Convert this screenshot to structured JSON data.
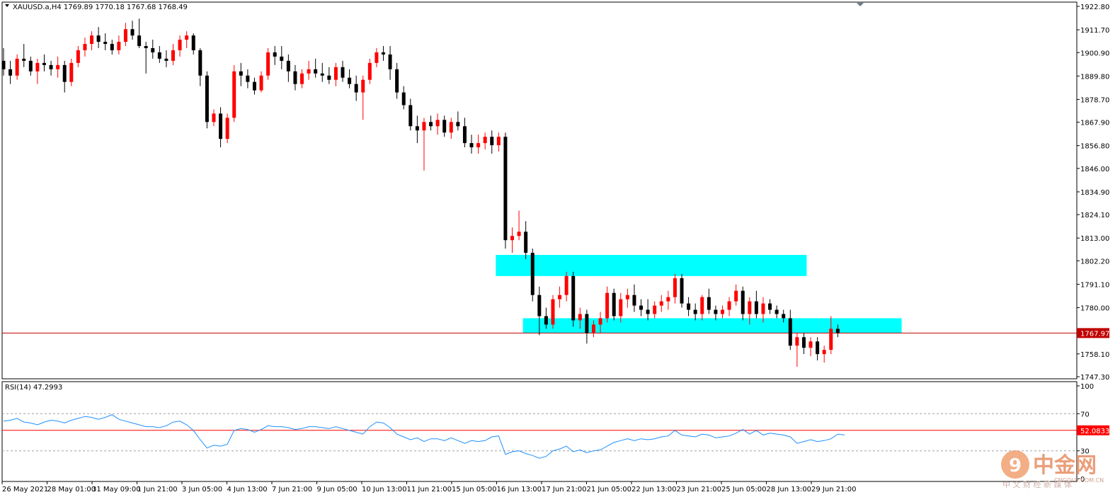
{
  "header": {
    "symbol_line": "XAUUSD.a,H4  1769.89 1770.18 1767.68 1768.49"
  },
  "price_axis": {
    "ticks": [
      "1922.80",
      "1911.70",
      "1900.90",
      "1889.80",
      "1878.70",
      "1867.90",
      "1856.80",
      "1846.00",
      "1834.90",
      "1824.10",
      "1813.00",
      "1802.20",
      "1791.10",
      "1780.00",
      "1769.20",
      "1758.10",
      "1747.30"
    ],
    "current_price": "1767.97"
  },
  "rsi": {
    "label": "RSI(14) 47.2993",
    "ticks": [
      "100",
      "70",
      "30",
      "0"
    ],
    "level_value": "52.0833"
  },
  "time_axis": {
    "labels": [
      "26 May 2021",
      "28 May 01:00",
      "31 May 09:00",
      "1 Jun 21:00",
      "3 Jun 05:00",
      "4 Jun 13:00",
      "7 Jun 21:00",
      "9 Jun 05:00",
      "10 Jun 13:00",
      "11 Jun 21:00",
      "15 Jun 05:00",
      "16 Jun 13:00",
      "17 Jun 21:00",
      "21 Jun 05:00",
      "22 Jun 13:00",
      "23 Jun 21:00",
      "25 Jun 05:00",
      "28 Jun 13:00",
      "29 Jun 21:00"
    ]
  },
  "watermark": {
    "brand": "中金网",
    "url": "CNGOLD.COM.CN",
    "tagline": "中 文 财 经 新 媒 体"
  },
  "colors": {
    "bull": "#ff0000",
    "bear": "#000000",
    "zone": "#00ffff",
    "rsi_line": "#1e90ff",
    "price_line": "#c00000",
    "level_line": "#ff0000"
  },
  "chart_data": [
    {
      "type": "candlestick",
      "title": "XAUUSD.a,H4",
      "ylim": [
        1747.3,
        1922.8
      ],
      "candles_ohlc": [
        [
          1897,
          1903,
          1890,
          1893
        ],
        [
          1893,
          1897,
          1886,
          1890
        ],
        [
          1890,
          1900,
          1888,
          1898
        ],
        [
          1898,
          1905,
          1894,
          1897
        ],
        [
          1897,
          1899,
          1890,
          1892
        ],
        [
          1892,
          1898,
          1886,
          1896
        ],
        [
          1896,
          1900,
          1892,
          1895
        ],
        [
          1895,
          1897,
          1890,
          1893
        ],
        [
          1893,
          1899,
          1889,
          1895
        ],
        [
          1895,
          1897,
          1882,
          1887
        ],
        [
          1887,
          1898,
          1885,
          1896
        ],
        [
          1896,
          1904,
          1894,
          1902
        ],
        [
          1902,
          1908,
          1899,
          1905
        ],
        [
          1905,
          1911,
          1902,
          1909
        ],
        [
          1909,
          1913,
          1903,
          1906
        ],
        [
          1906,
          1910,
          1902,
          1905
        ],
        [
          1905,
          1907,
          1900,
          1902
        ],
        [
          1902,
          1909,
          1900,
          1906
        ],
        [
          1906,
          1915,
          1904,
          1912
        ],
        [
          1912,
          1916,
          1907,
          1909
        ],
        [
          1909,
          1917,
          1903,
          1904
        ],
        [
          1904,
          1906,
          1891,
          1903
        ],
        [
          1903,
          1907,
          1898,
          1901
        ],
        [
          1901,
          1904,
          1896,
          1898
        ],
        [
          1898,
          1902,
          1894,
          1897
        ],
        [
          1897,
          1905,
          1895,
          1902
        ],
        [
          1902,
          1909,
          1899,
          1907
        ],
        [
          1907,
          1911,
          1903,
          1909
        ],
        [
          1909,
          1910,
          1900,
          1902
        ],
        [
          1902,
          1903,
          1885,
          1890
        ],
        [
          1890,
          1892,
          1865,
          1868
        ],
        [
          1868,
          1874,
          1866,
          1872
        ],
        [
          1872,
          1875,
          1856,
          1860
        ],
        [
          1860,
          1872,
          1858,
          1870
        ],
        [
          1870,
          1895,
          1868,
          1892
        ],
        [
          1892,
          1896,
          1885,
          1890
        ],
        [
          1890,
          1893,
          1884,
          1887
        ],
        [
          1887,
          1889,
          1881,
          1883
        ],
        [
          1883,
          1892,
          1882,
          1890
        ],
        [
          1890,
          1903,
          1888,
          1901
        ],
        [
          1901,
          1904,
          1895,
          1899
        ],
        [
          1899,
          1904,
          1893,
          1897
        ],
        [
          1897,
          1900,
          1887,
          1892
        ],
        [
          1892,
          1895,
          1883,
          1886
        ],
        [
          1886,
          1893,
          1884,
          1891
        ],
        [
          1891,
          1897,
          1888,
          1893
        ],
        [
          1893,
          1898,
          1889,
          1891
        ],
        [
          1891,
          1896,
          1887,
          1890
        ],
        [
          1890,
          1894,
          1886,
          1888
        ],
        [
          1888,
          1896,
          1885,
          1894
        ],
        [
          1894,
          1897,
          1887,
          1889
        ],
        [
          1889,
          1893,
          1884,
          1886
        ],
        [
          1886,
          1890,
          1878,
          1882
        ],
        [
          1882,
          1890,
          1869,
          1888
        ],
        [
          1888,
          1898,
          1886,
          1896
        ],
        [
          1896,
          1903,
          1894,
          1901
        ],
        [
          1901,
          1904,
          1897,
          1900
        ],
        [
          1900,
          1904,
          1888,
          1893
        ],
        [
          1893,
          1896,
          1879,
          1882
        ],
        [
          1882,
          1885,
          1874,
          1876
        ],
        [
          1876,
          1879,
          1864,
          1866
        ],
        [
          1866,
          1871,
          1858,
          1864
        ],
        [
          1864,
          1870,
          1845,
          1868
        ],
        [
          1868,
          1871,
          1864,
          1866
        ],
        [
          1866,
          1872,
          1862,
          1869
        ],
        [
          1869,
          1871,
          1861,
          1863
        ],
        [
          1863,
          1870,
          1860,
          1868
        ],
        [
          1868,
          1873,
          1864,
          1866
        ],
        [
          1866,
          1870,
          1856,
          1858
        ],
        [
          1858,
          1862,
          1853,
          1856
        ],
        [
          1856,
          1862,
          1853,
          1858
        ],
        [
          1858,
          1863,
          1855,
          1861
        ],
        [
          1861,
          1864,
          1853,
          1857
        ],
        [
          1857,
          1863,
          1854,
          1861
        ],
        [
          1861,
          1863,
          1808,
          1812
        ],
        [
          1812,
          1818,
          1806,
          1814
        ],
        [
          1814,
          1826,
          1812,
          1816
        ],
        [
          1816,
          1821,
          1803,
          1806
        ],
        [
          1806,
          1808,
          1783,
          1786
        ],
        [
          1786,
          1790,
          1767,
          1776
        ],
        [
          1776,
          1780,
          1770,
          1772
        ],
        [
          1772,
          1786,
          1770,
          1784
        ],
        [
          1784,
          1790,
          1780,
          1786
        ],
        [
          1786,
          1797,
          1783,
          1795
        ],
        [
          1795,
          1797,
          1771,
          1774
        ],
        [
          1774,
          1780,
          1770,
          1777
        ],
        [
          1777,
          1779,
          1763,
          1768
        ],
        [
          1768,
          1774,
          1766,
          1772
        ],
        [
          1772,
          1778,
          1768,
          1775
        ],
        [
          1775,
          1790,
          1773,
          1787
        ],
        [
          1787,
          1789,
          1774,
          1776
        ],
        [
          1776,
          1787,
          1773,
          1784
        ],
        [
          1784,
          1789,
          1780,
          1786
        ],
        [
          1786,
          1791,
          1778,
          1781
        ],
        [
          1781,
          1784,
          1776,
          1779
        ],
        [
          1779,
          1784,
          1774,
          1777
        ],
        [
          1777,
          1783,
          1775,
          1781
        ],
        [
          1781,
          1786,
          1778,
          1783
        ],
        [
          1783,
          1788,
          1779,
          1785
        ],
        [
          1785,
          1796,
          1782,
          1794
        ],
        [
          1794,
          1796,
          1780,
          1782
        ],
        [
          1782,
          1785,
          1776,
          1779
        ],
        [
          1779,
          1782,
          1774,
          1777
        ],
        [
          1777,
          1786,
          1774,
          1785
        ],
        [
          1785,
          1789,
          1777,
          1779
        ],
        [
          1779,
          1781,
          1774,
          1777
        ],
        [
          1777,
          1781,
          1775,
          1779
        ],
        [
          1779,
          1785,
          1776,
          1783
        ],
        [
          1783,
          1791,
          1781,
          1788
        ],
        [
          1788,
          1790,
          1774,
          1777
        ],
        [
          1777,
          1785,
          1772,
          1783
        ],
        [
          1783,
          1788,
          1775,
          1777
        ],
        [
          1777,
          1785,
          1773,
          1782
        ],
        [
          1782,
          1784,
          1777,
          1779
        ],
        [
          1779,
          1781,
          1775,
          1777
        ],
        [
          1777,
          1779,
          1773,
          1775
        ],
        [
          1775,
          1779,
          1760,
          1762
        ],
        [
          1762,
          1768,
          1752,
          1766
        ],
        [
          1766,
          1768,
          1758,
          1761
        ],
        [
          1761,
          1766,
          1757,
          1764
        ],
        [
          1764,
          1766,
          1755,
          1758
        ],
        [
          1758,
          1762,
          1754,
          1760
        ],
        [
          1760,
          1776,
          1758,
          1770
        ],
        [
          1770,
          1772,
          1766,
          1768
        ]
      ]
    },
    {
      "type": "line",
      "title": "RSI(14) 47.2993",
      "ylim": [
        0,
        100
      ],
      "series": [
        {
          "name": "RSI(14)",
          "values": [
            62,
            63,
            65,
            61,
            60,
            58,
            61,
            63,
            62,
            60,
            63,
            65,
            67,
            66,
            64,
            66,
            69,
            64,
            62,
            60,
            58,
            56,
            56,
            55,
            57,
            61,
            62,
            58,
            52,
            42,
            33,
            36,
            35,
            37,
            52,
            54,
            53,
            50,
            53,
            57,
            56,
            56,
            55,
            53,
            54,
            56,
            56,
            55,
            54,
            56,
            54,
            52,
            50,
            48,
            56,
            61,
            60,
            55,
            48,
            45,
            42,
            44,
            40,
            43,
            43,
            41,
            44,
            41,
            38,
            41,
            40,
            41,
            45,
            46,
            26,
            29,
            30,
            27,
            25,
            22,
            24,
            30,
            32,
            35,
            29,
            31,
            28,
            30,
            31,
            35,
            39,
            41,
            43,
            41,
            43,
            42,
            43,
            45,
            46,
            52,
            47,
            46,
            45,
            48,
            47,
            44,
            45,
            46,
            49,
            53,
            48,
            52,
            47,
            49,
            48,
            47,
            45,
            38,
            40,
            42,
            40,
            41,
            43,
            48,
            47
          ]
        }
      ],
      "levels": [
        70,
        52.0833,
        30
      ]
    }
  ]
}
